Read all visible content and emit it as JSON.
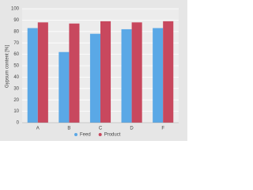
{
  "chart_data": {
    "type": "bar",
    "y_label": "Gypsum content [%]",
    "categories": [
      "A",
      "B",
      "C",
      "D",
      "F"
    ],
    "series": [
      {
        "name": "Feed",
        "color": "#5aa8e6",
        "values": [
          83,
          62,
          78,
          82,
          83
        ]
      },
      {
        "name": "Product",
        "color": "#c8485e",
        "values": [
          88,
          87,
          89,
          88,
          89
        ]
      }
    ],
    "ylim": [
      0,
      100
    ],
    "yticks": [
      0,
      10,
      20,
      30,
      40,
      50,
      60,
      70,
      80,
      90,
      100
    ],
    "grid": true,
    "legend": "bottom"
  }
}
